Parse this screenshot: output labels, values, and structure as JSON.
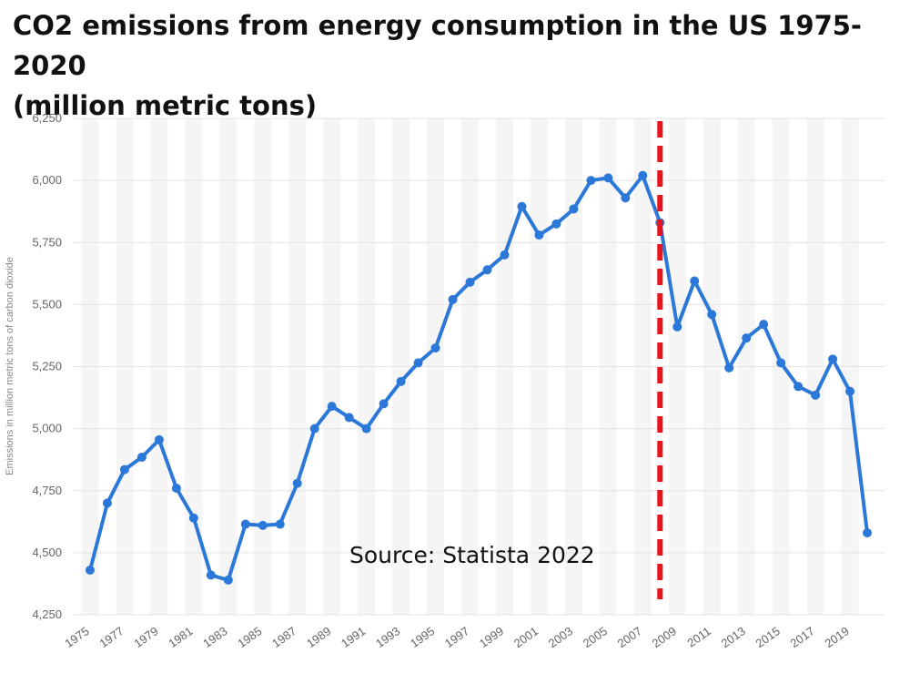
{
  "title": {
    "line1": "CO2 emissions from energy consumption in the US 1975-2020",
    "line2": "(million metric tons)"
  },
  "source_text": "Source: Statista 2022",
  "colors": {
    "line": "#2b78d9",
    "marker_line": "#e8141c",
    "grid": "#e3e3e3",
    "band": "#f5f5f5"
  },
  "chart_data": {
    "type": "line",
    "title": "CO2 emissions from energy consumption in the US 1975-2020 (million metric tons)",
    "xlabel": "",
    "ylabel": "Emissions in million metric tons of carbon dioxide",
    "ylim": [
      4250,
      6250
    ],
    "yticks": [
      4250,
      4500,
      4750,
      5000,
      5250,
      5500,
      5750,
      6000,
      6250
    ],
    "ytick_labels": [
      "4,250",
      "4,500",
      "4,750",
      "5,000",
      "5,250",
      "5,500",
      "5,750",
      "6,000",
      "6,250"
    ],
    "xtick_labels": [
      "1975",
      "1977",
      "1979",
      "1981",
      "1983",
      "1985",
      "1987",
      "1989",
      "1991",
      "1993",
      "1995",
      "1997",
      "1999",
      "2001",
      "2003",
      "2005",
      "2007",
      "2009",
      "2011",
      "2013",
      "2015",
      "2017",
      "2019"
    ],
    "grid": true,
    "legend": "none",
    "x": [
      1975,
      1976,
      1977,
      1978,
      1979,
      1980,
      1981,
      1982,
      1983,
      1984,
      1985,
      1986,
      1987,
      1988,
      1989,
      1990,
      1991,
      1992,
      1993,
      1994,
      1995,
      1996,
      1997,
      1998,
      1999,
      2000,
      2001,
      2002,
      2003,
      2004,
      2005,
      2006,
      2007,
      2008,
      2009,
      2010,
      2011,
      2012,
      2013,
      2014,
      2015,
      2016,
      2017,
      2018,
      2019,
      2020
    ],
    "series": [
      {
        "values": [
          4430,
          4700,
          4835,
          4885,
          4955,
          4760,
          4640,
          4410,
          4390,
          4615,
          4610,
          4615,
          4780,
          5000,
          5090,
          5045,
          5000,
          5100,
          5190,
          5265,
          5325,
          5520,
          5590,
          5640,
          5700,
          5895,
          5780,
          5825,
          5885,
          6000,
          6010,
          5930,
          6020,
          5830,
          5410,
          5595,
          5460,
          5245,
          5365,
          5420,
          5265,
          5170,
          5135,
          5280,
          5150,
          4580
        ]
      }
    ],
    "reference_line": {
      "x": 2008,
      "style": "dashed",
      "color": "#e8141c"
    }
  }
}
